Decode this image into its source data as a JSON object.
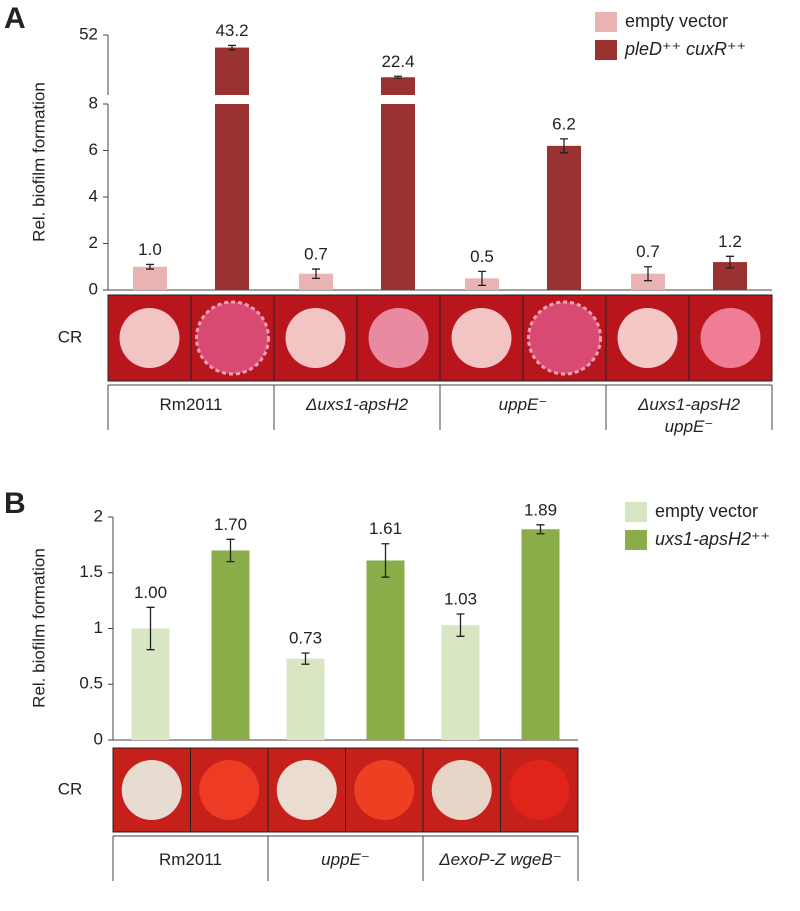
{
  "chart_data": [
    {
      "type": "bar",
      "panel_label": "A",
      "ylabel": "Rel. biofilm formation",
      "row_label": "CR",
      "categories": [
        "Rm2011",
        "Δuxs1-apsH2",
        "uppE⁻",
        "Δuxs1-apsH2 uppE⁻"
      ],
      "series": [
        {
          "name": "empty vector",
          "color": "#eab3b3",
          "values": [
            1.0,
            0.7,
            0.5,
            0.7
          ],
          "value_labels": [
            "1.0",
            "0.7",
            "0.5",
            "0.7"
          ],
          "errors": [
            0.1,
            0.2,
            0.3,
            0.3
          ]
        },
        {
          "name": "pleD⁺⁺ cuxR⁺⁺",
          "color": "#9b3232",
          "values": [
            43.2,
            22.4,
            6.2,
            1.2
          ],
          "value_labels": [
            "43.2",
            "22.4",
            "6.2",
            "1.2"
          ],
          "errors": [
            1.5,
            0.7,
            0.3,
            0.25
          ]
        }
      ],
      "ylim": [
        0,
        52
      ],
      "ybreak": [
        8,
        10
      ],
      "yticks": [
        0,
        2,
        4,
        6,
        8,
        52
      ],
      "legend": "upper right"
    },
    {
      "type": "bar",
      "panel_label": "B",
      "ylabel": "Rel. biofilm formation",
      "row_label": "CR",
      "categories": [
        "Rm2011",
        "uppE⁻",
        "ΔexoP-Z wgeB⁻"
      ],
      "series": [
        {
          "name": "empty vector",
          "color": "#d9e6c3",
          "values": [
            1.0,
            0.73,
            1.03
          ],
          "value_labels": [
            "1.00",
            "0.73",
            "1.03"
          ],
          "errors": [
            0.19,
            0.05,
            0.1
          ]
        },
        {
          "name": "uxs1-apsH2⁺⁺",
          "color": "#8aad4a",
          "values": [
            1.7,
            1.61,
            1.89
          ],
          "value_labels": [
            "1.70",
            "1.61",
            "1.89"
          ],
          "errors": [
            0.1,
            0.15,
            0.04
          ]
        }
      ],
      "ylim": [
        0,
        2
      ],
      "yticks": [
        0,
        0.5,
        1,
        1.5,
        2
      ],
      "legend": "upper right"
    }
  ]
}
